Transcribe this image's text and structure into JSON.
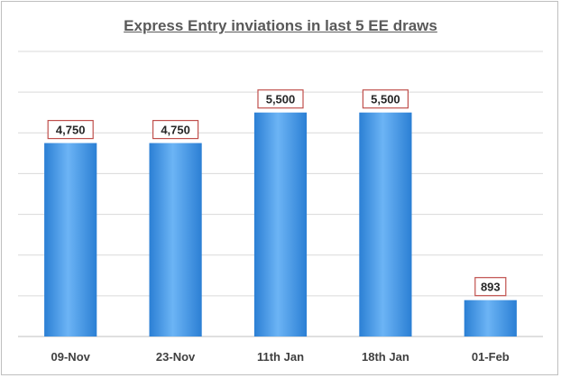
{
  "chart_data": {
    "type": "bar",
    "title": "Express Entry inviations in last 5 EE draws",
    "categories": [
      "09-Nov",
      "23-Nov",
      "11th Jan",
      "18th Jan",
      "01-Feb"
    ],
    "values": [
      4750,
      4750,
      5500,
      5500,
      893
    ],
    "data_labels": [
      "4,750",
      "4,750",
      "5,500",
      "5,500",
      "893"
    ],
    "ylim": [
      0,
      7000
    ],
    "grid": true,
    "legend": "none",
    "colors": {
      "bar_light": "#6cb4f5",
      "bar_dark": "#2b7fd4",
      "label_border": "#c0504d",
      "grid": "#d9d9d9"
    }
  }
}
